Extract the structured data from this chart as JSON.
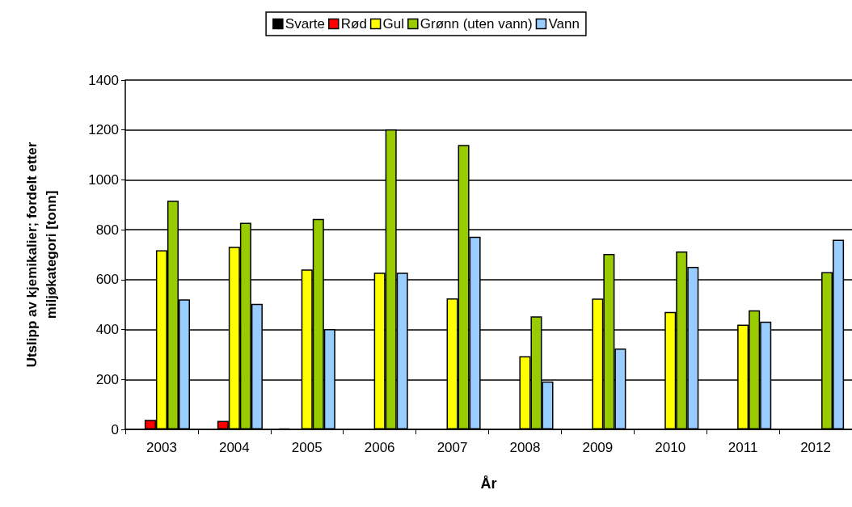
{
  "chart_data": {
    "type": "bar",
    "xlabel": "År",
    "ylabel": "Utslipp av kjemikalier; fordelt etter\nmiljøkategori [tonn]",
    "categories": [
      "2003",
      "2004",
      "2005",
      "2006",
      "2007",
      "2008",
      "2009",
      "2010",
      "2011",
      "2012"
    ],
    "series": [
      {
        "name": "Svarte",
        "color": "#000000",
        "values": [
          null,
          null,
          4,
          null,
          null,
          null,
          null,
          null,
          null,
          null
        ]
      },
      {
        "name": "Rød",
        "color": "#ff0000",
        "values": [
          38,
          34,
          null,
          null,
          null,
          null,
          null,
          null,
          null,
          null
        ]
      },
      {
        "name": "Gul",
        "color": "#ffff00",
        "values": [
          718,
          732,
          641,
          628,
          525,
          293,
          524,
          471,
          420,
          null
        ]
      },
      {
        "name": "Grønn (uten vann)",
        "color": "#99cc00",
        "values": [
          916,
          828,
          843,
          1202,
          1140,
          453,
          703,
          713,
          477,
          630
        ]
      },
      {
        "name": "Vann",
        "color": "#99ccff",
        "values": [
          521,
          503,
          402,
          628,
          772,
          192,
          324,
          651,
          432,
          760
        ]
      }
    ],
    "ylim": [
      0,
      1400
    ],
    "yticks": [
      0,
      200,
      400,
      600,
      800,
      1000,
      1200,
      1400
    ],
    "grid": "y",
    "legend": "top"
  }
}
